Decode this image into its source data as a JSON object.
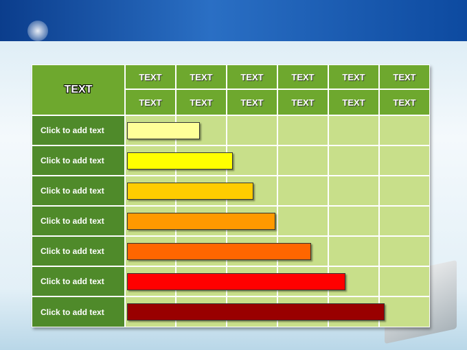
{
  "table": {
    "corner": "TEXT",
    "header_rows": [
      [
        "TEXT",
        "TEXT",
        "TEXT",
        "TEXT",
        "TEXT",
        "TEXT"
      ],
      [
        "TEXT",
        "TEXT",
        "TEXT",
        "TEXT",
        "TEXT",
        "TEXT"
      ]
    ],
    "rows": [
      "Click to add text",
      "Click to add text",
      "Click to add text",
      "Click to add text",
      "Click to add text",
      "Click to add text",
      "Click to add text"
    ]
  }
}
